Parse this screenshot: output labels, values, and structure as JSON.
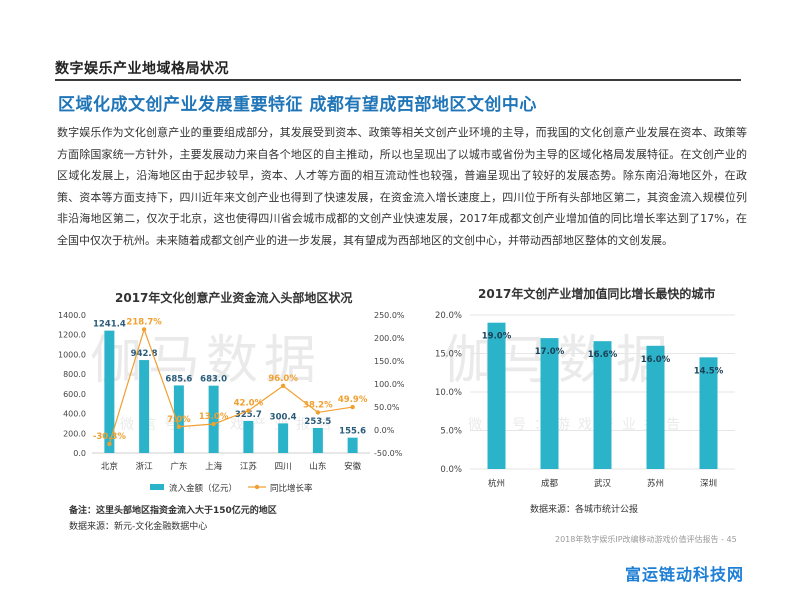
{
  "section_header": "数字娱乐产业地域格局状况",
  "headline": "区域化成文创产业发展重要特征  成都有望成西部地区文创中心",
  "body_text": "数字娱乐作为文化创意产业的重要组成部分，其发展受到资本、政策等相关文创产业环境的主导，而我国的文化创意产业发展在资本、政策等方面除国家统一方针外，主要发展动力来自各个地区的自主推动，所以也呈现出了以城市或省份为主导的区域化格局发展特征。在文创产业的区域化发展上，沿海地区由于起步较早，资本、人才等方面的相互流动性也较强，普遍呈现出了较好的发展态势。除东南沿海地区外，在政策、资本等方面支持下，四川近年来文创产业也得到了快速发展，在资金流入增长速度上，四川位于所有头部地区第二，其资金流入规模位列非沿海地区第二，仅次于北京，这也使得四川省会城市成都的文创产业快速发展，2017年成都文创产业增加值的同比增长率达到了17%，在全国中仅次于杭州。未来随着成都文创产业的进一步发展，其有望成为西部地区的文创中心，并带动西部地区整体的文创发展。",
  "watermark": {
    "big": "伽马数据",
    "small": "微信号：游戏产业报告"
  },
  "colors": {
    "headline": "#1f75b8",
    "bar": "#2bb3c9",
    "line": "#f0a030",
    "brand": "#1e7fd6"
  },
  "chart_data": [
    {
      "type": "bar",
      "title": "2017年文化创意产业资金流入头部地区状况",
      "categories": [
        "北京",
        "浙江",
        "广东",
        "上海",
        "江苏",
        "四川",
        "山东",
        "安徽"
      ],
      "series": [
        {
          "name": "流入金额（亿元）",
          "type": "bar",
          "axis": "left",
          "values": [
            1241.4,
            942.8,
            685.6,
            683.0,
            325.7,
            300.4,
            253.5,
            155.6
          ],
          "labels": [
            "1241.4",
            "942.8",
            "685.6",
            "683.0",
            "325.7",
            "300.4",
            "253.5",
            "155.6"
          ]
        },
        {
          "name": "同比增长率",
          "type": "line",
          "axis": "right",
          "values": [
            -30.3,
            218.7,
            7.0,
            13.0,
            42.0,
            96.0,
            38.2,
            49.9
          ],
          "labels": [
            "-30.3%",
            "218.7%",
            "7.0%",
            "13.0%",
            "42.0%",
            "96.0%",
            "38.2%",
            "49.9%"
          ]
        }
      ],
      "y_left": {
        "min": 0,
        "max": 1400,
        "ticks": [
          "0.0",
          "200.0",
          "400.0",
          "600.0",
          "800.0",
          "1000.0",
          "1200.0",
          "1400.0"
        ]
      },
      "y_right": {
        "min": -50,
        "max": 250,
        "ticks": [
          "-50.0%",
          "0.0%",
          "50.0%",
          "100.0%",
          "150.0%",
          "200.0%",
          "250.0%"
        ]
      },
      "legend_position": "bottom"
    },
    {
      "type": "bar",
      "title": "2017年文创产业增加值同比增长最快的城市",
      "categories": [
        "杭州",
        "成都",
        "武汉",
        "苏州",
        "深圳"
      ],
      "values": [
        19.0,
        17.0,
        16.6,
        16.0,
        14.5
      ],
      "labels": [
        "19.0%",
        "17.0%",
        "16.6%",
        "16.0%",
        "14.5%"
      ],
      "ylim": [
        0,
        20
      ],
      "yticks": [
        "0.0%",
        "5.0%",
        "10.0%",
        "15.0%",
        "20.0%"
      ]
    }
  ],
  "note_prefix": "备注：",
  "note_text": "这里头部地区指资金流入大于150亿元的地区",
  "source_left": "数据来源：新元-文化金融数据中心",
  "source_right": "数据来源：各城市统计公报",
  "footer": "2018年数字娱乐IP改编移动游戏价值评估报告 - 45",
  "brand": "富运链动科技网"
}
